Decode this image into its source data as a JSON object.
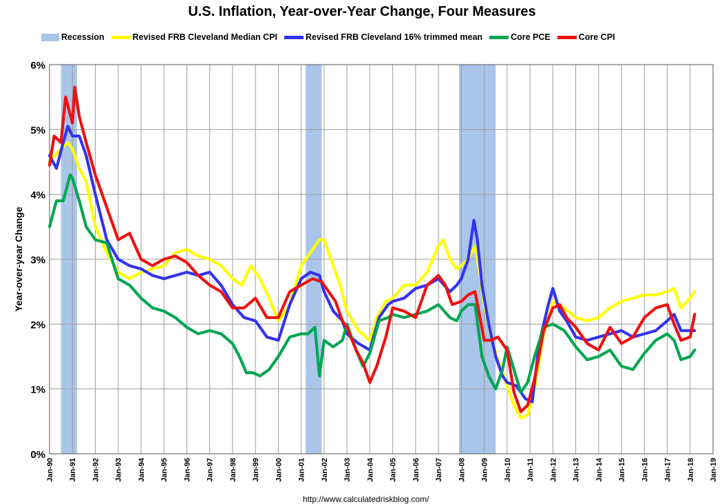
{
  "chart_data": {
    "type": "line",
    "title": "U.S. Inflation, Year-over-Year Change, Four Measures",
    "xlabel": "",
    "ylabel": "Year-over-year Change",
    "source": "http://www.calculatedriskblog.com/",
    "xlim": [
      1990.0,
      2019.0
    ],
    "ylim": [
      0,
      6
    ],
    "y_ticks": [
      "0%",
      "1%",
      "2%",
      "3%",
      "4%",
      "5%",
      "6%"
    ],
    "x_ticks": [
      "Jan-90",
      "Jan-91",
      "Jan-92",
      "Jan-93",
      "Jan-94",
      "Jan-95",
      "Jan-96",
      "Jan-97",
      "Jan-98",
      "Jan-99",
      "Jan-00",
      "Jan-01",
      "Jan-02",
      "Jan-03",
      "Jan-04",
      "Jan-05",
      "Jan-06",
      "Jan-07",
      "Jan-08",
      "Jan-09",
      "Jan-10",
      "Jan-11",
      "Jan-12",
      "Jan-13",
      "Jan-14",
      "Jan-15",
      "Jan-16",
      "Jan-17",
      "Jan-18",
      "Jan-19"
    ],
    "grid": true,
    "legend_position": "top",
    "recessions": [
      {
        "name": "Recession",
        "start": 1990.5,
        "end": 1991.2
      },
      {
        "name": "Recession",
        "start": 2001.2,
        "end": 2001.9
      },
      {
        "name": "Recession",
        "start": 2007.9,
        "end": 2009.5
      }
    ],
    "recession_label": "Recession",
    "recession_color": "#a9c5ea",
    "series": [
      {
        "name": "Revised FRB Cleveland Median CPI",
        "color": "#ffff00",
        "x": [
          1990.0,
          1990.5,
          1990.8,
          1991.0,
          1991.3,
          1991.6,
          1992.0,
          1992.5,
          1993.0,
          1993.5,
          1994.0,
          1994.5,
          1995.0,
          1995.5,
          1996.0,
          1996.5,
          1997.0,
          1997.5,
          1998.0,
          1998.4,
          1998.8,
          1999.2,
          1999.6,
          2000.0,
          2000.5,
          2001.0,
          2001.4,
          2001.8,
          2002.0,
          2002.3,
          2002.7,
          2003.0,
          2003.5,
          2004.0,
          2004.3,
          2004.7,
          2005.0,
          2005.5,
          2006.0,
          2006.5,
          2007.0,
          2007.2,
          2007.5,
          2007.8,
          2008.0,
          2008.3,
          2008.6,
          2008.8,
          2009.0,
          2009.3,
          2009.6,
          2010.0,
          2010.3,
          2010.6,
          2010.9,
          2011.2,
          2011.6,
          2012.0,
          2012.5,
          2013.0,
          2013.5,
          2014.0,
          2014.5,
          2015.0,
          2015.5,
          2016.0,
          2016.5,
          2017.0,
          2017.3,
          2017.6,
          2018.0,
          2018.2
        ],
        "values": [
          4.5,
          4.7,
          4.8,
          4.7,
          4.4,
          4.2,
          3.5,
          3.1,
          2.8,
          2.7,
          2.8,
          2.85,
          2.9,
          3.1,
          3.15,
          3.05,
          3.0,
          2.9,
          2.7,
          2.6,
          2.9,
          2.7,
          2.4,
          2.05,
          2.3,
          2.9,
          3.1,
          3.3,
          3.3,
          3.0,
          2.6,
          2.2,
          1.9,
          1.75,
          2.1,
          2.35,
          2.4,
          2.6,
          2.6,
          2.8,
          3.2,
          3.3,
          3.0,
          2.85,
          2.9,
          3.0,
          3.2,
          2.8,
          2.3,
          1.8,
          1.45,
          1.05,
          0.75,
          0.55,
          0.6,
          1.0,
          1.85,
          2.35,
          2.25,
          2.1,
          2.05,
          2.1,
          2.25,
          2.35,
          2.4,
          2.45,
          2.45,
          2.5,
          2.55,
          2.25,
          2.4,
          2.5
        ]
      },
      {
        "name": "Revised FRB Cleveland 16% trimmed mean",
        "color": "#3333ee",
        "x": [
          1990.0,
          1990.3,
          1990.6,
          1990.8,
          1991.0,
          1991.3,
          1991.6,
          1992.0,
          1992.5,
          1993.0,
          1993.5,
          1994.0,
          1994.5,
          1995.0,
          1995.5,
          1996.0,
          1996.5,
          1997.0,
          1997.5,
          1998.0,
          1998.5,
          1999.0,
          1999.5,
          2000.0,
          2000.5,
          2001.0,
          2001.4,
          2001.8,
          2002.0,
          2002.4,
          2002.8,
          2003.0,
          2003.5,
          2004.0,
          2004.4,
          2004.8,
          2005.0,
          2005.5,
          2006.0,
          2006.5,
          2007.0,
          2007.5,
          2007.8,
          2008.0,
          2008.3,
          2008.55,
          2008.7,
          2008.9,
          2009.2,
          2009.5,
          2009.8,
          2010.0,
          2010.4,
          2010.8,
          2011.1,
          2011.4,
          2011.8,
          2012.0,
          2012.3,
          2012.6,
          2013.0,
          2013.5,
          2014.0,
          2014.5,
          2015.0,
          2015.5,
          2016.0,
          2016.5,
          2017.0,
          2017.3,
          2017.6,
          2018.0,
          2018.2
        ],
        "values": [
          4.6,
          4.4,
          4.8,
          5.05,
          4.9,
          4.9,
          4.6,
          4.0,
          3.3,
          3.0,
          2.9,
          2.85,
          2.75,
          2.7,
          2.75,
          2.8,
          2.75,
          2.8,
          2.6,
          2.3,
          2.1,
          2.05,
          1.8,
          1.75,
          2.3,
          2.7,
          2.8,
          2.75,
          2.5,
          2.2,
          2.05,
          1.85,
          1.7,
          1.6,
          2.1,
          2.3,
          2.35,
          2.4,
          2.55,
          2.6,
          2.7,
          2.5,
          2.6,
          2.7,
          3.0,
          3.6,
          3.3,
          2.6,
          2.0,
          1.5,
          1.2,
          1.1,
          1.05,
          0.85,
          0.8,
          1.7,
          2.3,
          2.55,
          2.2,
          2.05,
          1.8,
          1.75,
          1.8,
          1.85,
          1.9,
          1.8,
          1.85,
          1.9,
          2.05,
          2.15,
          1.9,
          1.9,
          1.9
        ]
      },
      {
        "name": "Core PCE",
        "color": "#00a651",
        "x": [
          1990.0,
          1990.3,
          1990.6,
          1990.9,
          1991.0,
          1991.3,
          1991.6,
          1992.0,
          1992.5,
          1993.0,
          1993.5,
          1994.0,
          1994.5,
          1995.0,
          1995.5,
          1996.0,
          1996.5,
          1997.0,
          1997.5,
          1998.0,
          1998.3,
          1998.6,
          1998.9,
          1999.2,
          1999.6,
          2000.0,
          2000.5,
          2001.0,
          2001.3,
          2001.6,
          2001.8,
          2002.0,
          2002.4,
          2002.8,
          2003.0,
          2003.4,
          2003.7,
          2004.0,
          2004.4,
          2004.8,
          2005.0,
          2005.5,
          2006.0,
          2006.5,
          2007.0,
          2007.5,
          2007.8,
          2008.0,
          2008.3,
          2008.6,
          2008.9,
          2009.2,
          2009.5,
          2009.8,
          2010.0,
          2010.3,
          2010.6,
          2010.9,
          2011.2,
          2011.6,
          2012.0,
          2012.5,
          2013.0,
          2013.5,
          2014.0,
          2014.5,
          2015.0,
          2015.5,
          2016.0,
          2016.5,
          2017.0,
          2017.3,
          2017.6,
          2018.0,
          2018.2
        ],
        "values": [
          3.5,
          3.9,
          3.9,
          4.3,
          4.25,
          3.9,
          3.5,
          3.3,
          3.25,
          2.7,
          2.6,
          2.4,
          2.25,
          2.2,
          2.1,
          1.95,
          1.85,
          1.9,
          1.85,
          1.7,
          1.5,
          1.25,
          1.25,
          1.2,
          1.3,
          1.5,
          1.8,
          1.85,
          1.85,
          1.95,
          1.2,
          1.75,
          1.65,
          1.75,
          2.0,
          1.6,
          1.35,
          1.55,
          2.05,
          2.1,
          2.15,
          2.1,
          2.15,
          2.2,
          2.3,
          2.1,
          2.05,
          2.2,
          2.3,
          2.3,
          1.5,
          1.2,
          1.0,
          1.3,
          1.65,
          1.3,
          0.95,
          1.1,
          1.5,
          1.95,
          2.0,
          1.9,
          1.65,
          1.45,
          1.5,
          1.6,
          1.35,
          1.3,
          1.55,
          1.75,
          1.85,
          1.75,
          1.45,
          1.5,
          1.6
        ]
      },
      {
        "name": "Core CPI",
        "color": "#ee1111",
        "x": [
          1990.0,
          1990.2,
          1990.5,
          1990.7,
          1991.0,
          1991.1,
          1991.3,
          1991.6,
          1992.0,
          1992.5,
          1993.0,
          1993.5,
          1994.0,
          1994.5,
          1995.0,
          1995.5,
          1996.0,
          1996.5,
          1997.0,
          1997.5,
          1998.0,
          1998.5,
          1999.0,
          1999.5,
          2000.0,
          2000.5,
          2001.0,
          2001.5,
          2001.9,
          2002.2,
          2002.5,
          2002.8,
          2003.0,
          2003.4,
          2003.7,
          2004.0,
          2004.3,
          2004.7,
          2005.0,
          2005.5,
          2006.0,
          2006.5,
          2007.0,
          2007.3,
          2007.6,
          2008.0,
          2008.3,
          2008.6,
          2009.0,
          2009.3,
          2009.6,
          2010.0,
          2010.3,
          2010.6,
          2010.9,
          2011.2,
          2011.6,
          2012.0,
          2012.3,
          2012.6,
          2013.0,
          2013.5,
          2014.0,
          2014.5,
          2015.0,
          2015.5,
          2016.0,
          2016.5,
          2017.0,
          2017.3,
          2017.6,
          2018.0,
          2018.2
        ],
        "values": [
          4.45,
          4.9,
          4.8,
          5.5,
          5.1,
          5.65,
          5.2,
          4.8,
          4.3,
          3.8,
          3.3,
          3.4,
          3.0,
          2.9,
          3.0,
          3.05,
          2.95,
          2.75,
          2.6,
          2.5,
          2.25,
          2.25,
          2.4,
          2.1,
          2.1,
          2.5,
          2.6,
          2.7,
          2.65,
          2.5,
          2.35,
          2.05,
          1.95,
          1.6,
          1.4,
          1.1,
          1.35,
          1.8,
          2.25,
          2.2,
          2.1,
          2.6,
          2.75,
          2.6,
          2.3,
          2.35,
          2.45,
          2.5,
          1.75,
          1.75,
          1.8,
          1.6,
          0.95,
          0.65,
          0.75,
          1.15,
          1.9,
          2.25,
          2.3,
          2.1,
          1.95,
          1.7,
          1.6,
          1.95,
          1.7,
          1.8,
          2.1,
          2.25,
          2.3,
          2.0,
          1.75,
          1.8,
          2.15
        ]
      }
    ]
  }
}
